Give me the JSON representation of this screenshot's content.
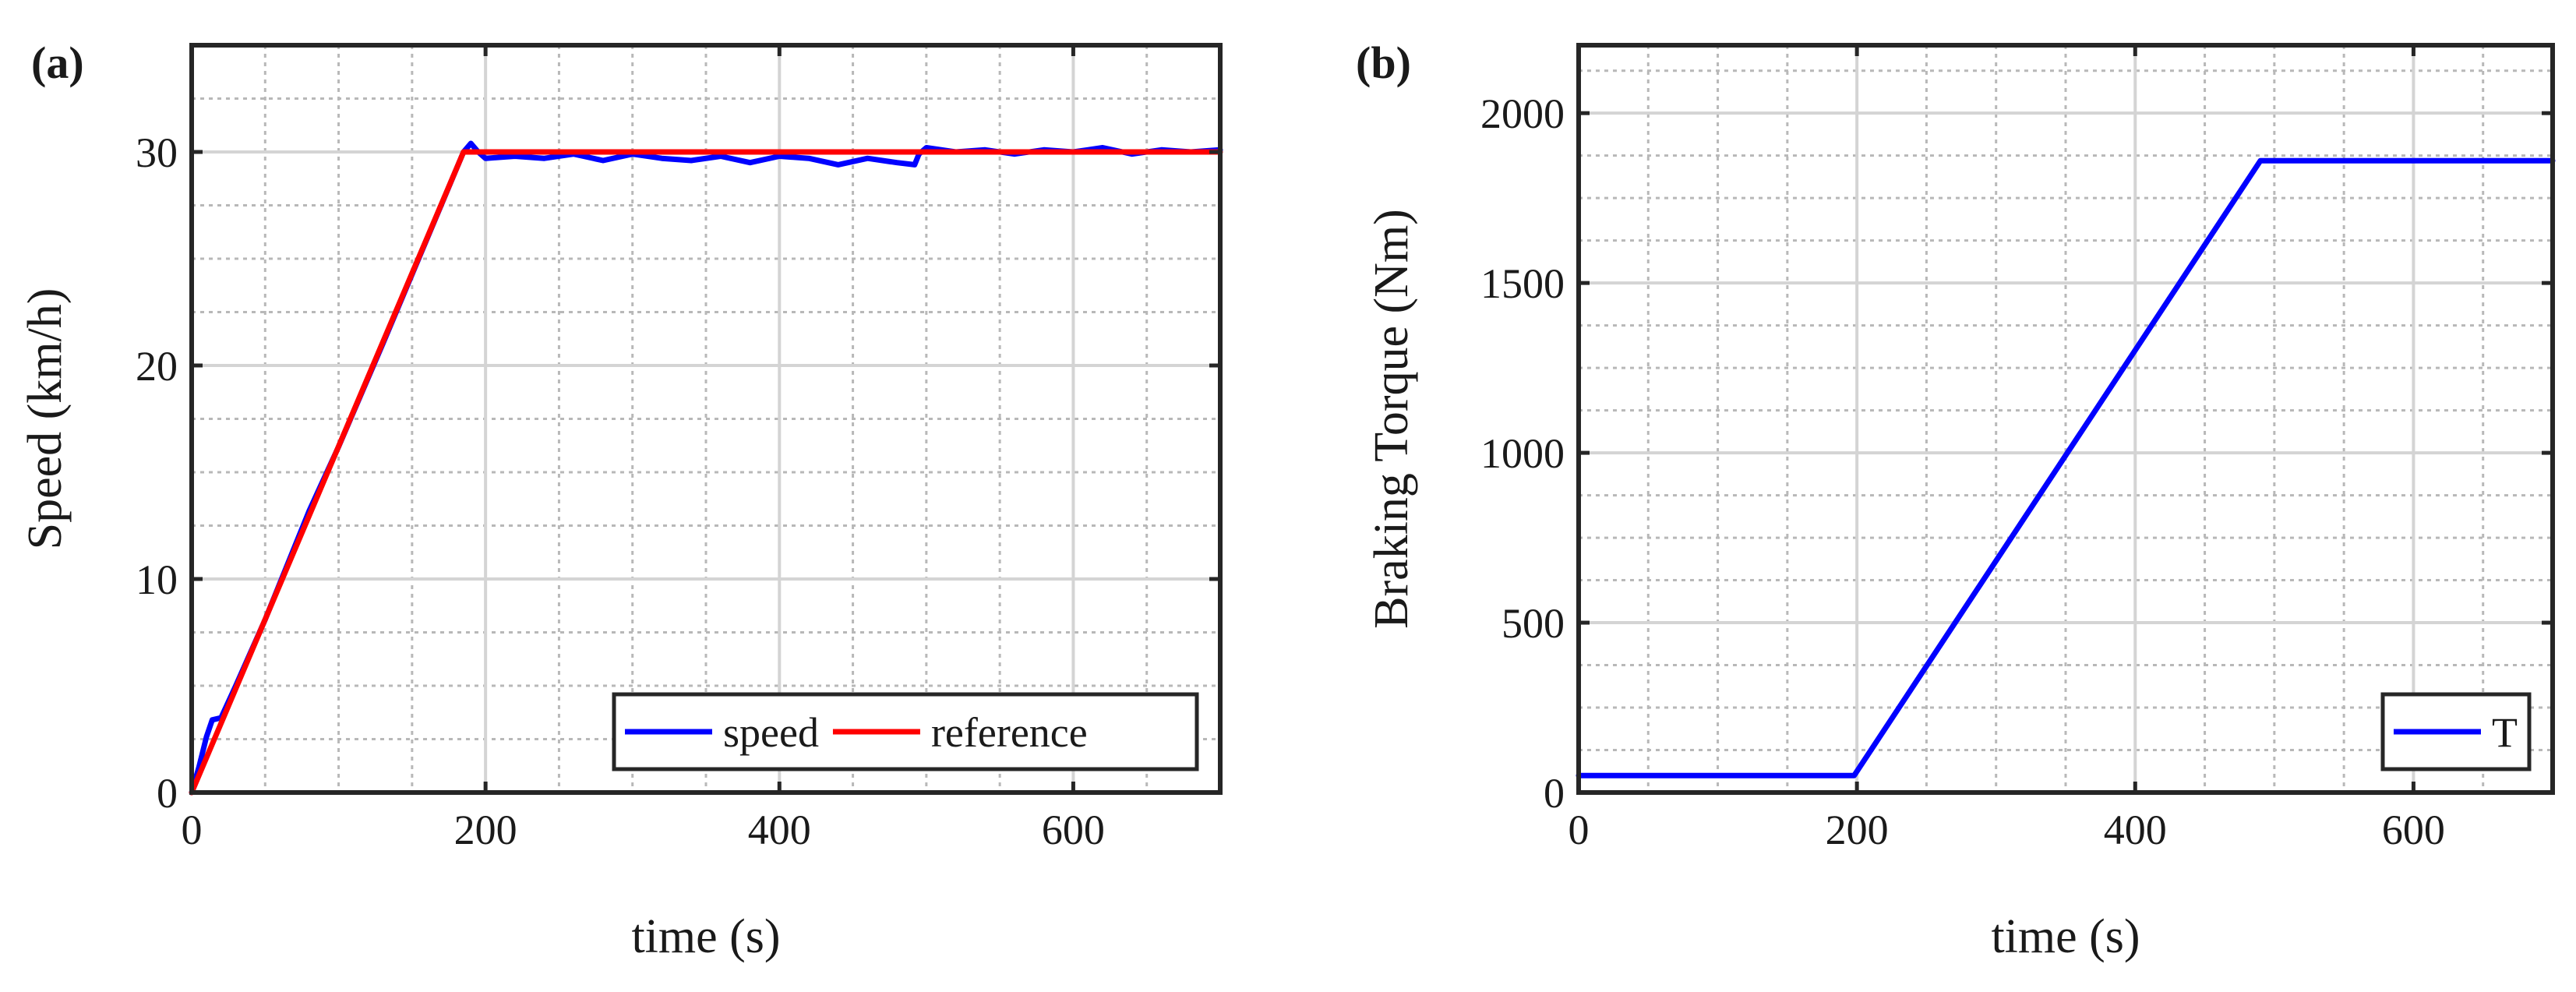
{
  "chart_data": [
    {
      "id": "a",
      "panel_label": "(a)",
      "type": "line",
      "xlabel": "time (s)",
      "ylabel": "Speed (km/h)",
      "xlim": [
        0,
        700
      ],
      "ylim": [
        0,
        35
      ],
      "xticks": [
        0,
        200,
        400,
        600
      ],
      "yticks": [
        0,
        10,
        20,
        30
      ],
      "xtick_labels": [
        "0",
        "200",
        "400",
        "600"
      ],
      "ytick_labels": [
        "0",
        "10",
        "20",
        "30"
      ],
      "grid": true,
      "minor_grid": true,
      "legend_position": "bottom-right",
      "series": [
        {
          "name": "speed",
          "color": "#0000ff",
          "x": [
            0,
            5,
            10,
            14,
            20,
            30,
            50,
            80,
            100,
            130,
            160,
            185,
            190,
            195,
            200,
            220,
            240,
            260,
            280,
            300,
            320,
            340,
            360,
            380,
            400,
            420,
            440,
            460,
            480,
            492,
            495,
            500,
            520,
            540,
            560,
            580,
            600,
            620,
            640,
            660,
            680,
            700
          ],
          "y": [
            0,
            1.2,
            2.6,
            3.4,
            3.5,
            5.0,
            8.1,
            13.2,
            16.2,
            21.0,
            25.9,
            30.0,
            30.4,
            30.0,
            29.7,
            29.8,
            29.7,
            29.9,
            29.6,
            29.9,
            29.7,
            29.6,
            29.8,
            29.5,
            29.8,
            29.7,
            29.4,
            29.7,
            29.5,
            29.4,
            29.9,
            30.2,
            30.0,
            30.1,
            29.9,
            30.1,
            30.0,
            30.2,
            29.9,
            30.1,
            30.0,
            30.1
          ]
        },
        {
          "name": "reference",
          "color": "#ff0000",
          "x": [
            0,
            185,
            700
          ],
          "y": [
            0,
            30,
            30
          ]
        }
      ]
    },
    {
      "id": "b",
      "panel_label": "(b)",
      "type": "line",
      "xlabel": "time (s)",
      "ylabel": "Braking Torque (Nm)",
      "xlim": [
        0,
        700
      ],
      "ylim": [
        0,
        2200
      ],
      "xticks": [
        0,
        200,
        400,
        600
      ],
      "yticks": [
        0,
        500,
        1000,
        1500,
        2000
      ],
      "xtick_labels": [
        "0",
        "200",
        "400",
        "600"
      ],
      "ytick_labels": [
        "0",
        "500",
        "1000",
        "1500",
        "2000"
      ],
      "grid": true,
      "minor_grid": true,
      "legend_position": "bottom-right",
      "series": [
        {
          "name": "T",
          "color": "#0000ff",
          "x": [
            0,
            198,
            490,
            700
          ],
          "y": [
            50,
            50,
            1860,
            1860
          ]
        }
      ]
    }
  ]
}
